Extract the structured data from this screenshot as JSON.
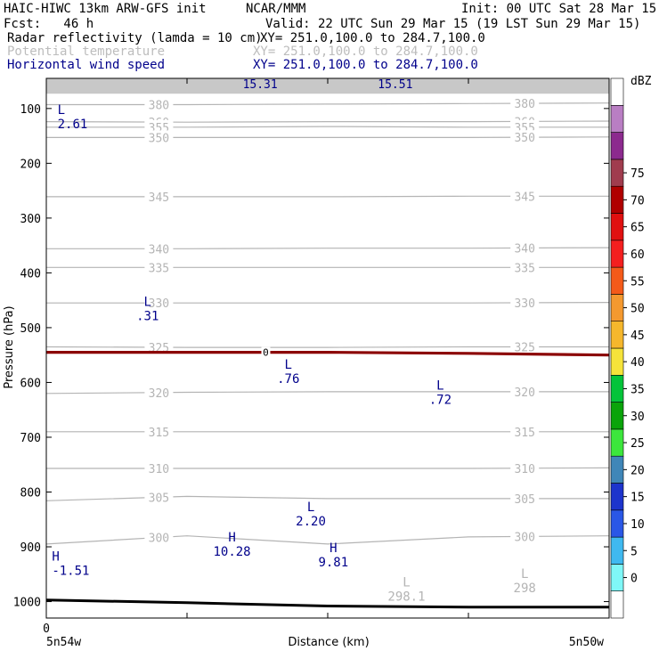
{
  "header": {
    "left_title": "HAIC-HIWC 13km ARW-GFS init",
    "org": "NCAR/MMM",
    "init": "Init: 00 UTC Sat 28 Mar 15",
    "fcst": "Fcst:   46 h",
    "valid": "Valid: 22 UTC Sun 29 Mar 15 (19 LST Sun 29 Mar 15)",
    "fields": [
      {
        "name": "Radar reflectivity (lamda = 10 cm)",
        "xy": "XY= 251.0,100.0 to 284.7,100.0",
        "color": "#000000"
      },
      {
        "name": "Potential temperature",
        "xy": "XY= 251.0,100.0 to 284.7,100.0",
        "color": "#bdbdbd"
      },
      {
        "name": "Horizontal wind speed",
        "xy": "XY= 251.0,100.0 to 284.7,100.0",
        "color": "#00008b"
      }
    ]
  },
  "colorbar": {
    "unit": "dBZ",
    "levels": [
      "0",
      "5",
      "10",
      "15",
      "20",
      "25",
      "30",
      "35",
      "40",
      "45",
      "50",
      "55",
      "60",
      "65",
      "70",
      "75"
    ],
    "colors": [
      "#ffffff",
      "#7ff7f7",
      "#3fb9f0",
      "#2a57e6",
      "#1d34cc",
      "#3f86b8",
      "#3ce63c",
      "#0aa40a",
      "#04c43a",
      "#f5e33a",
      "#f5b72c",
      "#f4992f",
      "#f45a1a",
      "#f41f1f",
      "#e01010",
      "#b00000",
      "#a03c4e",
      "#8c2a8e",
      "#b97ec3",
      "#ffffff"
    ]
  },
  "chart_data": {
    "type": "line",
    "ylabel": "Pressure (hPa)",
    "xlabel": "Distance (km)",
    "y_ticks": [
      100,
      200,
      300,
      400,
      500,
      600,
      700,
      800,
      900,
      1000
    ],
    "y_tick_labels": [
      "100",
      "200",
      "300",
      "400",
      "500",
      "600",
      "700",
      "800",
      "900",
      "1000"
    ],
    "ylim": [
      1030,
      45
    ],
    "x_ticks": [
      0,
      0.25,
      0.5,
      0.75,
      1.0
    ],
    "x_tick_labels": [
      "0"
    ],
    "x_end_labels": [
      "5n54w",
      "5n50w"
    ],
    "top_band": {
      "pressure_top": 45,
      "pressure_bottom": 73,
      "color": "#c8c8c8"
    },
    "theta_contours": [
      {
        "value": 380,
        "pressure": [
          93,
          93,
          92,
          91,
          90
        ]
      },
      {
        "value": 360,
        "pressure": [
          124,
          125,
          124,
          124,
          123
        ]
      },
      {
        "value": 355,
        "pressure": [
          134,
          134,
          133,
          134,
          134
        ]
      },
      {
        "value": 350,
        "pressure": [
          153,
          153,
          153,
          153,
          152
        ]
      },
      {
        "value": 345,
        "pressure": [
          261,
          261,
          261,
          260,
          260
        ]
      },
      {
        "value": 340,
        "pressure": [
          356,
          356,
          355,
          355,
          354
        ]
      },
      {
        "value": 335,
        "pressure": [
          390,
          390,
          390,
          390,
          390
        ]
      },
      {
        "value": 330,
        "pressure": [
          455,
          455,
          455,
          455,
          454
        ]
      },
      {
        "value": 325,
        "pressure": [
          535,
          536,
          536,
          535,
          535
        ]
      },
      {
        "value": 320,
        "pressure": [
          620,
          618,
          617,
          617,
          617
        ]
      },
      {
        "value": 315,
        "pressure": [
          690,
          690,
          690,
          690,
          690
        ]
      },
      {
        "value": 310,
        "pressure": [
          757,
          757,
          757,
          757,
          756
        ]
      },
      {
        "value": 305,
        "pressure": [
          816,
          808,
          812,
          812,
          812
        ]
      },
      {
        "value": 300,
        "pressure": [
          895,
          880,
          895,
          882,
          880
        ]
      }
    ],
    "zero_dbz_line": {
      "pressure": [
        545,
        545,
        545,
        547,
        550
      ]
    },
    "terrain": {
      "pressure": [
        997,
        1002,
        1008,
        1010,
        1010
      ]
    },
    "wind_labels": [
      {
        "type": "L",
        "value": "2.61",
        "x": 0.02,
        "p": 115
      },
      {
        "type": "L",
        "value": ".31",
        "x": 0.18,
        "p": 465
      },
      {
        "type": "L",
        "value": ".76",
        "x": 0.43,
        "p": 580
      },
      {
        "type": "L",
        "value": ".72",
        "x": 0.7,
        "p": 618
      },
      {
        "type": "L",
        "value": "2.20",
        "x": 0.47,
        "p": 840
      },
      {
        "type": "H",
        "value": "10.28",
        "x": 0.33,
        "p": 895
      },
      {
        "type": "H",
        "value": "9.81",
        "x": 0.51,
        "p": 915
      },
      {
        "type": "H",
        "value": "-1.51",
        "x": 0.01,
        "p": 930
      }
    ],
    "top_band_labels": [
      {
        "value": "15.31",
        "x": 0.38
      },
      {
        "value": "15.51",
        "x": 0.62
      }
    ],
    "theta_extrema": [
      {
        "type": "L",
        "value": "298.1",
        "x": 0.64,
        "p": 985
      },
      {
        "type": "L",
        "value": "298",
        "x": 0.85,
        "p": 970
      }
    ],
    "zero_label": "0"
  }
}
